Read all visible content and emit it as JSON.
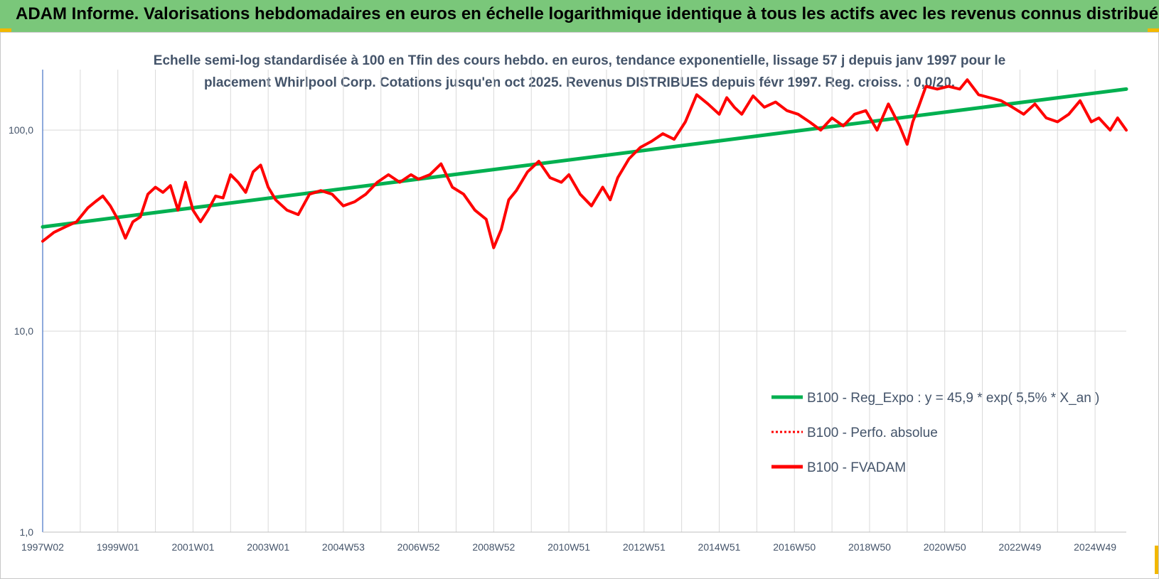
{
  "header": {
    "title": "ADAM Informe. Valorisations hebdomadaires en euros en échelle logarithmique identique à tous les actifs avec les revenus connus distribués"
  },
  "colors": {
    "header_bg": "#7ac77a",
    "corner": "#f2b800",
    "trend": "#00b050",
    "price": "#ff0000",
    "text": "#44546a",
    "grid": "#d9d9d9",
    "axis": "#4472c4"
  },
  "chart_data": {
    "type": "line",
    "title_line1": "Echelle semi-log standardisée à 100 en Tfin des cours hebdo. en euros, tendance exponentielle, lissage 57 j depuis janv 1997 pour le",
    "title_line2": "placement Whirlpool Corp. Cotations jusqu'en oct 2025. Revenus DISTRIBUES depuis févr 1997. Reg. croiss. : 0,0/20.",
    "y_scale": "log",
    "ylim": [
      1,
      200
    ],
    "y_ticks": [
      {
        "value": 1,
        "label": "1,0"
      },
      {
        "value": 10,
        "label": "10,0"
      },
      {
        "value": 100,
        "label": "100,0"
      }
    ],
    "xlim": [
      1997.0,
      2025.83
    ],
    "x_ticks": [
      {
        "value": 1997.0,
        "label": "1997W02"
      },
      {
        "value": 1999.0,
        "label": "1999W01"
      },
      {
        "value": 2001.0,
        "label": "2001W01"
      },
      {
        "value": 2003.0,
        "label": "2003W01"
      },
      {
        "value": 2005.0,
        "label": "2004W53"
      },
      {
        "value": 2007.0,
        "label": "2006W52"
      },
      {
        "value": 2009.0,
        "label": "2008W52"
      },
      {
        "value": 2011.0,
        "label": "2010W51"
      },
      {
        "value": 2013.0,
        "label": "2012W51"
      },
      {
        "value": 2015.0,
        "label": "2014W51"
      },
      {
        "value": 2017.0,
        "label": "2016W50"
      },
      {
        "value": 2019.0,
        "label": "2018W50"
      },
      {
        "value": 2021.0,
        "label": "2020W50"
      },
      {
        "value": 2023.0,
        "label": "2022W49"
      },
      {
        "value": 2025.0,
        "label": "2024W49"
      }
    ],
    "grid": true,
    "legend_position": "bottom-right",
    "series": [
      {
        "name": "B100 - Reg_Expo : y = 45,9 * exp( 5,5% *  X_an )",
        "style": "solid-thick",
        "color": "#00b050",
        "x": [
          1997.0,
          2025.83
        ],
        "y": [
          33.0,
          160.0
        ]
      },
      {
        "name": "B100 - Perfo. absolue",
        "style": "dotted",
        "color": "#ff0000",
        "x": [],
        "y": []
      },
      {
        "name": "B100 - FVADAM",
        "style": "solid-thick",
        "color": "#ff0000",
        "x": [
          1997.0,
          1997.3,
          1997.6,
          1997.9,
          1998.2,
          1998.4,
          1998.6,
          1998.8,
          1999.0,
          1999.2,
          1999.4,
          1999.6,
          1999.8,
          2000.0,
          2000.2,
          2000.4,
          2000.6,
          2000.8,
          2001.0,
          2001.2,
          2001.4,
          2001.6,
          2001.8,
          2002.0,
          2002.2,
          2002.4,
          2002.6,
          2002.8,
          2003.0,
          2003.2,
          2003.5,
          2003.8,
          2004.1,
          2004.4,
          2004.7,
          2005.0,
          2005.3,
          2005.6,
          2005.9,
          2006.2,
          2006.5,
          2006.8,
          2007.0,
          2007.3,
          2007.6,
          2007.9,
          2008.2,
          2008.5,
          2008.8,
          2009.0,
          2009.2,
          2009.4,
          2009.6,
          2009.9,
          2010.2,
          2010.5,
          2010.8,
          2011.0,
          2011.3,
          2011.6,
          2011.9,
          2012.1,
          2012.3,
          2012.6,
          2012.9,
          2013.2,
          2013.5,
          2013.8,
          2014.1,
          2014.4,
          2014.7,
          2015.0,
          2015.2,
          2015.4,
          2015.6,
          2015.9,
          2016.2,
          2016.5,
          2016.8,
          2017.1,
          2017.4,
          2017.7,
          2018.0,
          2018.3,
          2018.6,
          2018.9,
          2019.2,
          2019.5,
          2019.8,
          2020.0,
          2020.15,
          2020.3,
          2020.5,
          2020.8,
          2021.1,
          2021.4,
          2021.6,
          2021.9,
          2022.2,
          2022.5,
          2022.8,
          2023.1,
          2023.4,
          2023.7,
          2024.0,
          2024.3,
          2024.6,
          2024.9,
          2025.1,
          2025.4,
          2025.6,
          2025.83
        ],
        "y": [
          28,
          31,
          33,
          35,
          41,
          44,
          47,
          42,
          36,
          29,
          35,
          37,
          48,
          52,
          49,
          53,
          40,
          55,
          40,
          35,
          40,
          47,
          46,
          60,
          55,
          49,
          62,
          67,
          52,
          45,
          40,
          38,
          48,
          50,
          48,
          42,
          44,
          48,
          55,
          60,
          55,
          60,
          57,
          60,
          68,
          52,
          48,
          40,
          36,
          26,
          32,
          45,
          50,
          62,
          70,
          58,
          55,
          60,
          48,
          42,
          52,
          45,
          58,
          72,
          82,
          88,
          96,
          90,
          110,
          150,
          135,
          120,
          145,
          130,
          120,
          148,
          130,
          138,
          125,
          120,
          110,
          100,
          115,
          105,
          120,
          125,
          100,
          135,
          105,
          85,
          110,
          130,
          165,
          160,
          165,
          160,
          178,
          150,
          145,
          140,
          130,
          120,
          135,
          115,
          110,
          120,
          140,
          110,
          115,
          100,
          115,
          100
        ]
      }
    ]
  }
}
